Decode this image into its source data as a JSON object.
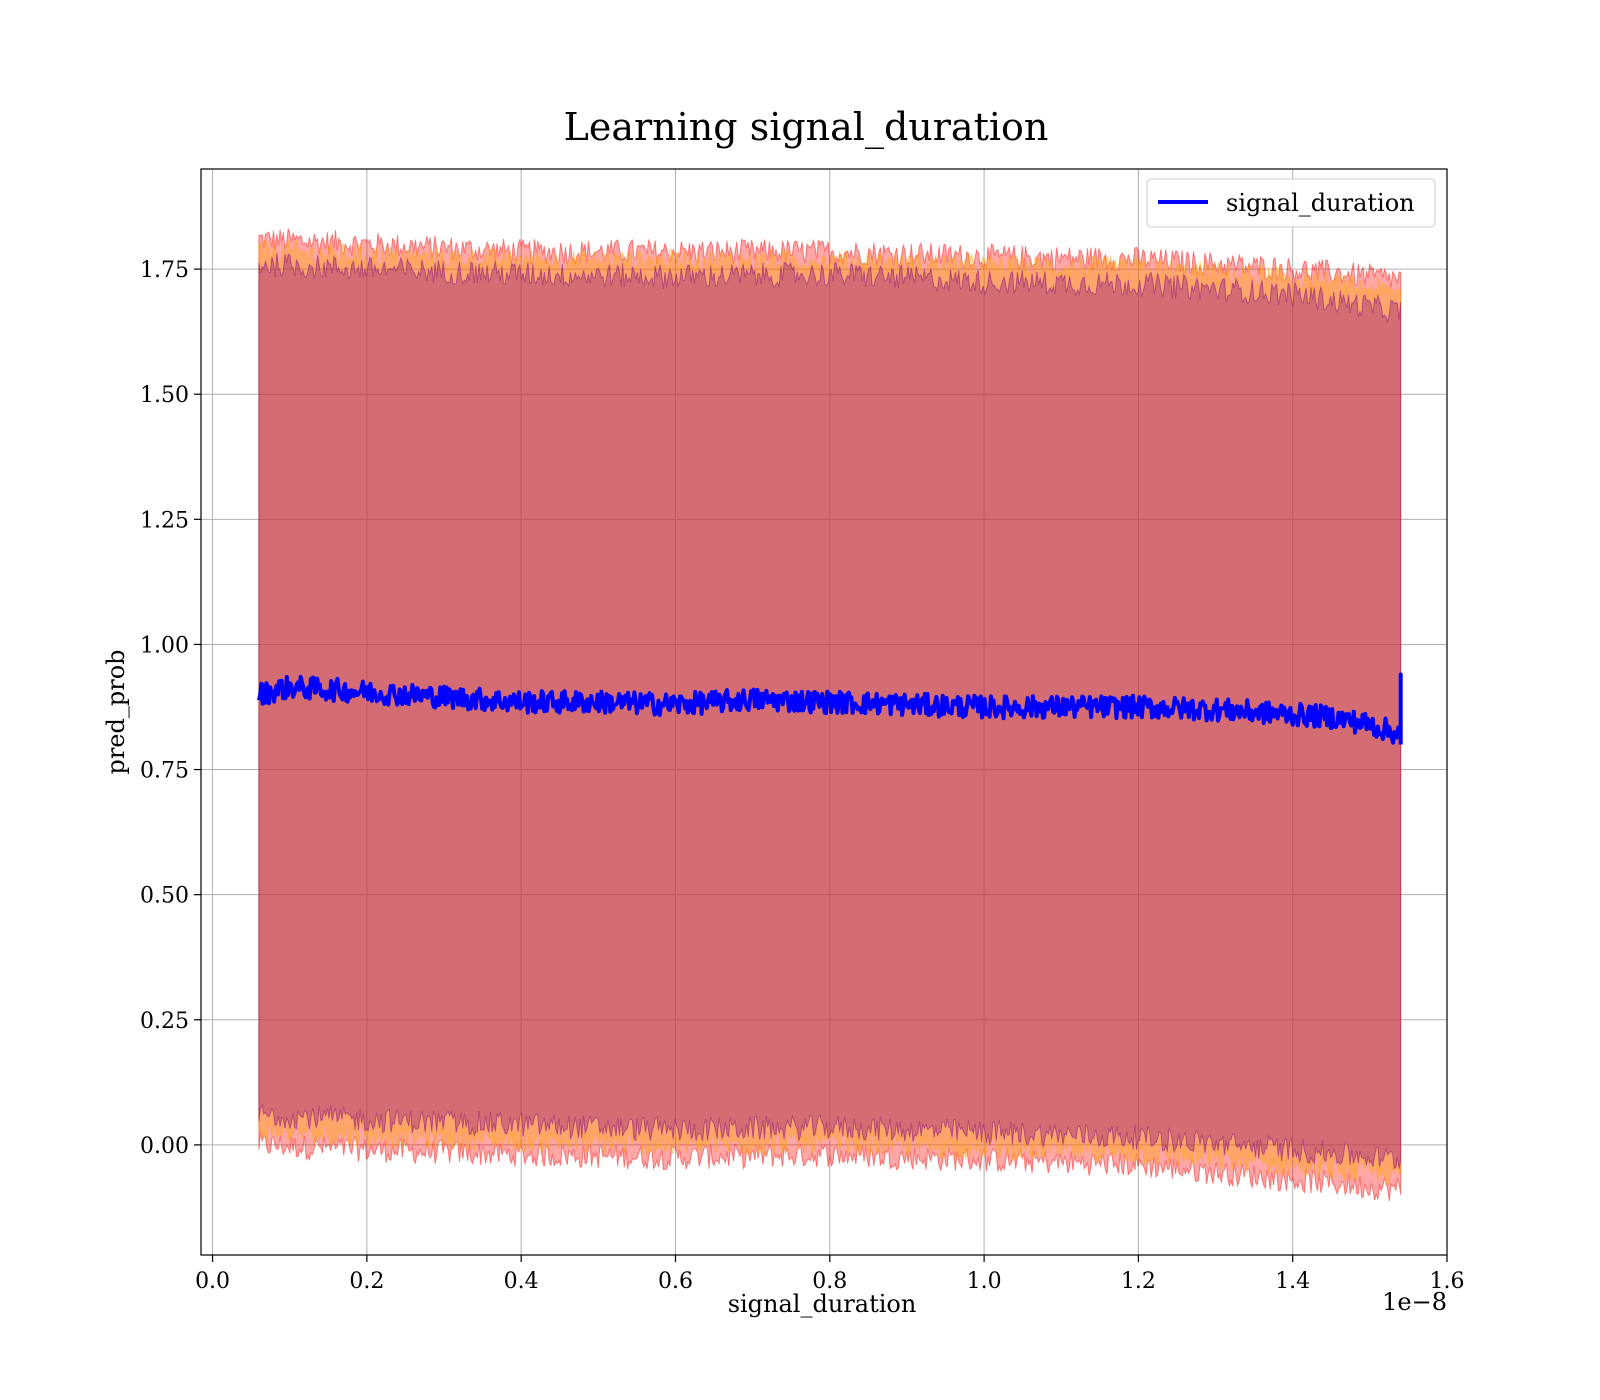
{
  "chart_data": {
    "type": "line",
    "title": "Learning signal_duration",
    "xlabel": "signal_duration",
    "ylabel": "pred_prob",
    "x_scale_label": "1e−8",
    "xlim": [
      -0.015,
      1.6
    ],
    "ylim": [
      -0.22,
      1.95
    ],
    "x_ticks": [
      0.0,
      0.2,
      0.4,
      0.6,
      0.8,
      1.0,
      1.2,
      1.4,
      1.6
    ],
    "x_tick_labels": [
      "0.0",
      "0.2",
      "0.4",
      "0.6",
      "0.8",
      "1.0",
      "1.2",
      "1.4",
      "1.6"
    ],
    "y_ticks": [
      0.0,
      0.25,
      0.5,
      0.75,
      1.0,
      1.25,
      1.5,
      1.75
    ],
    "y_tick_labels": [
      "0.00",
      "0.25",
      "0.50",
      "0.75",
      "1.00",
      "1.25",
      "1.50",
      "1.75"
    ],
    "grid": true,
    "legend_position": "top-right",
    "series": [
      {
        "name": "signal_duration",
        "color": "#0000ff",
        "x": [
          0.06,
          0.1,
          0.2,
          0.3,
          0.4,
          0.5,
          0.6,
          0.7,
          0.8,
          0.9,
          1.0,
          1.1,
          1.2,
          1.3,
          1.4,
          1.45,
          1.5,
          1.54
        ],
        "y": [
          0.9,
          0.915,
          0.905,
          0.895,
          0.885,
          0.885,
          0.88,
          0.89,
          0.885,
          0.88,
          0.875,
          0.875,
          0.875,
          0.87,
          0.86,
          0.855,
          0.84,
          0.82
        ]
      }
    ],
    "bands": [
      {
        "color": "#ff0000",
        "x": [
          0.06,
          0.2,
          0.4,
          0.6,
          0.8,
          1.0,
          1.2,
          1.4,
          1.54
        ],
        "lower": [
          0.0,
          -0.01,
          -0.02,
          -0.025,
          -0.02,
          -0.03,
          -0.04,
          -0.07,
          -0.09
        ],
        "upper": [
          1.81,
          1.8,
          1.785,
          1.785,
          1.785,
          1.775,
          1.77,
          1.75,
          1.73
        ]
      },
      {
        "color": "#ffa500",
        "x": [
          0.06,
          0.2,
          0.4,
          0.6,
          0.8,
          1.0,
          1.2,
          1.4,
          1.54
        ],
        "lower": [
          0.03,
          0.02,
          0.01,
          0.0,
          0.005,
          -0.005,
          -0.015,
          -0.04,
          -0.06
        ],
        "upper": [
          1.785,
          1.775,
          1.765,
          1.765,
          1.765,
          1.755,
          1.75,
          1.73,
          1.7
        ]
      },
      {
        "color": "#800080",
        "x": [
          0.06,
          0.2,
          0.4,
          0.6,
          0.8,
          1.0,
          1.2,
          1.4,
          1.54
        ],
        "lower": [
          0.06,
          0.05,
          0.04,
          0.03,
          0.035,
          0.025,
          0.015,
          -0.01,
          -0.03
        ],
        "upper": [
          1.76,
          1.75,
          1.74,
          1.735,
          1.74,
          1.725,
          1.72,
          1.7,
          1.665
        ]
      }
    ]
  }
}
